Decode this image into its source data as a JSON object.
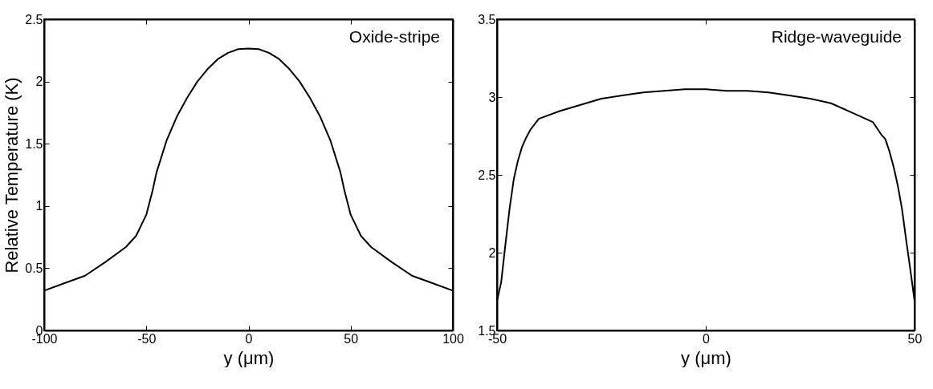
{
  "chart_data": [
    {
      "type": "line",
      "xlabel": "y (μm)",
      "ylabel": "Relative Temperature (K)",
      "annotations": [
        "Oxide-stripe"
      ],
      "xlim": [
        -100,
        100
      ],
      "xticks": [
        -100,
        -50,
        0,
        50,
        100
      ],
      "ylim": [
        0,
        2.5
      ],
      "yticks": [
        0,
        0.5,
        1,
        1.5,
        2,
        2.5
      ],
      "line_style": "solid",
      "series": [
        {
          "color": "#000000",
          "x": [
            -100,
            -90,
            -80,
            -70,
            -60,
            -55,
            -50,
            -47,
            -45,
            -40,
            -35,
            -30,
            -25,
            -20,
            -15,
            -10,
            -5,
            0,
            5,
            10,
            15,
            20,
            25,
            30,
            35,
            40,
            45,
            47,
            50,
            55,
            60,
            70,
            80,
            90,
            100
          ],
          "values": [
            0.32,
            0.38,
            0.44,
            0.55,
            0.67,
            0.76,
            0.93,
            1.12,
            1.27,
            1.53,
            1.72,
            1.87,
            2.0,
            2.1,
            2.18,
            2.23,
            2.26,
            2.265,
            2.26,
            2.23,
            2.18,
            2.1,
            2.0,
            1.87,
            1.72,
            1.53,
            1.27,
            1.12,
            0.93,
            0.76,
            0.67,
            0.55,
            0.44,
            0.38,
            0.32
          ]
        }
      ]
    },
    {
      "type": "line",
      "xlabel": "y (μm)",
      "annotations": [
        "Ridge-waveguide"
      ],
      "xlim": [
        -50,
        50
      ],
      "xticks": [
        -50,
        0,
        50
      ],
      "ylim": [
        1.5,
        3.5
      ],
      "yticks": [
        1.5,
        2,
        2.5,
        3,
        3.5
      ],
      "line_style": "solid",
      "series": [
        {
          "color": "#000000",
          "x": [
            -50,
            -49,
            -48,
            -47,
            -46,
            -45,
            -44,
            -43,
            -42,
            -40,
            -35,
            -30,
            -25,
            -20,
            -15,
            -10,
            -5,
            0,
            5,
            10,
            15,
            20,
            25,
            30,
            35,
            40,
            42,
            43,
            44,
            45,
            46,
            47,
            48,
            49,
            50
          ],
          "values": [
            1.69,
            1.81,
            2.05,
            2.28,
            2.47,
            2.59,
            2.68,
            2.74,
            2.79,
            2.86,
            2.91,
            2.95,
            2.99,
            3.01,
            3.03,
            3.04,
            3.05,
            3.05,
            3.04,
            3.04,
            3.03,
            3.01,
            2.99,
            2.96,
            2.9,
            2.84,
            2.76,
            2.73,
            2.65,
            2.55,
            2.43,
            2.28,
            2.08,
            1.89,
            1.69
          ]
        }
      ]
    }
  ]
}
